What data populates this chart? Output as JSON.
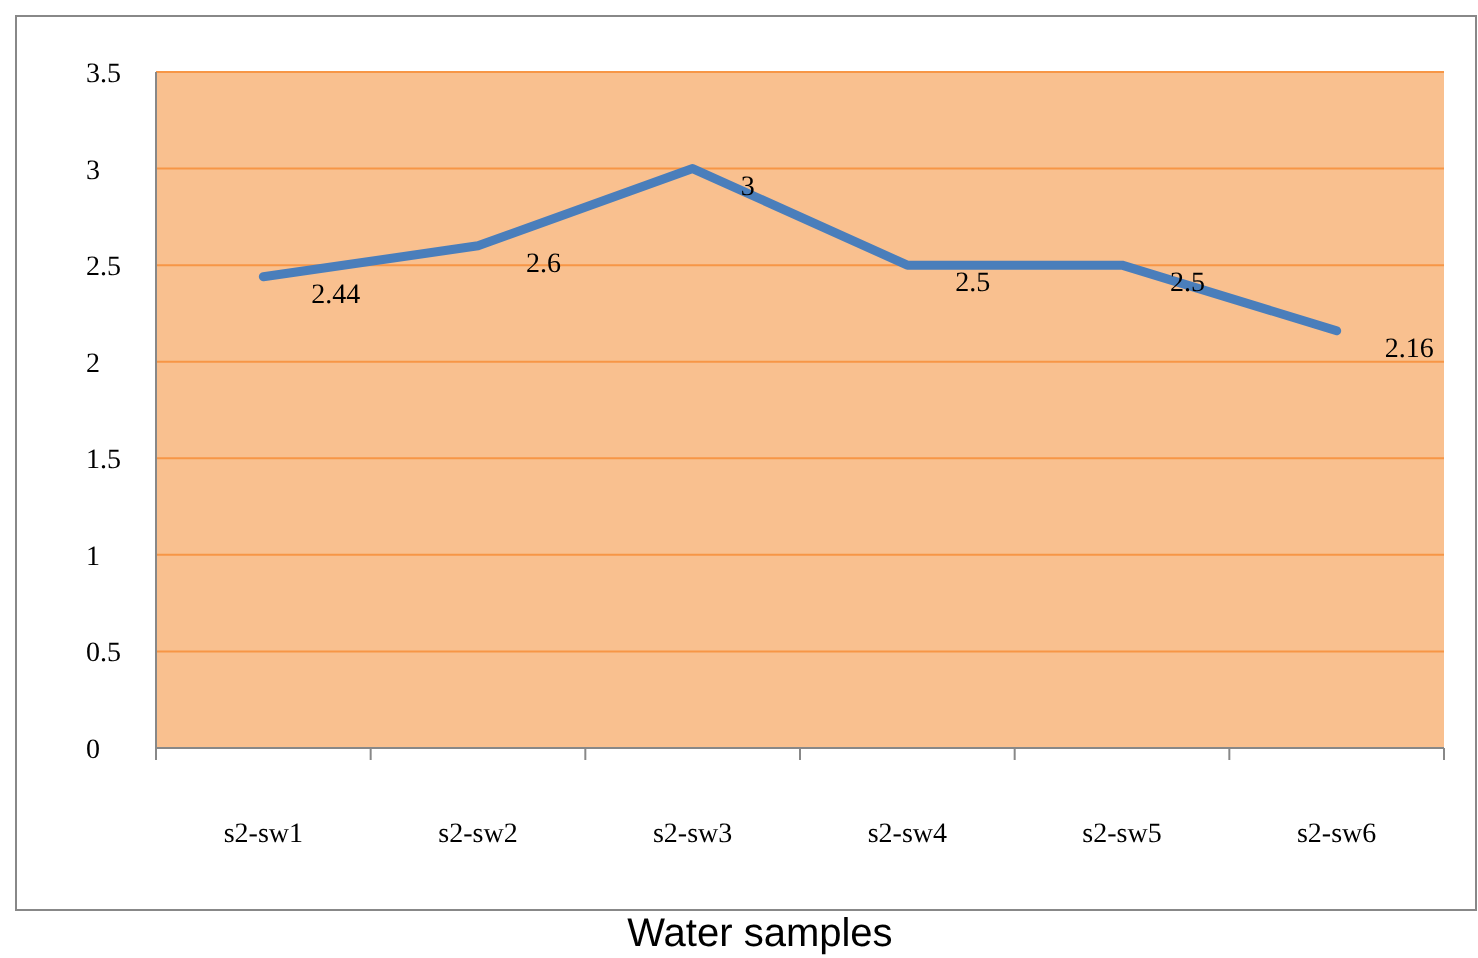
{
  "chart_data": {
    "type": "line",
    "xlabel": "Water samples",
    "categories": [
      "s2-sw1",
      "s2-sw2",
      "s2-sw3",
      "s2-sw4",
      "s2-sw5",
      "s2-sw6"
    ],
    "series": [
      {
        "color": "#4a7ebb",
        "values": [
          2.44,
          2.6,
          3,
          2.5,
          2.5,
          2.16
        ]
      }
    ],
    "ylim": [
      0,
      3.5
    ],
    "yticks": [
      0,
      0.5,
      1,
      1.5,
      2,
      2.5,
      3,
      3.5
    ],
    "grid": "y",
    "data_labels": true,
    "marker": "none"
  }
}
